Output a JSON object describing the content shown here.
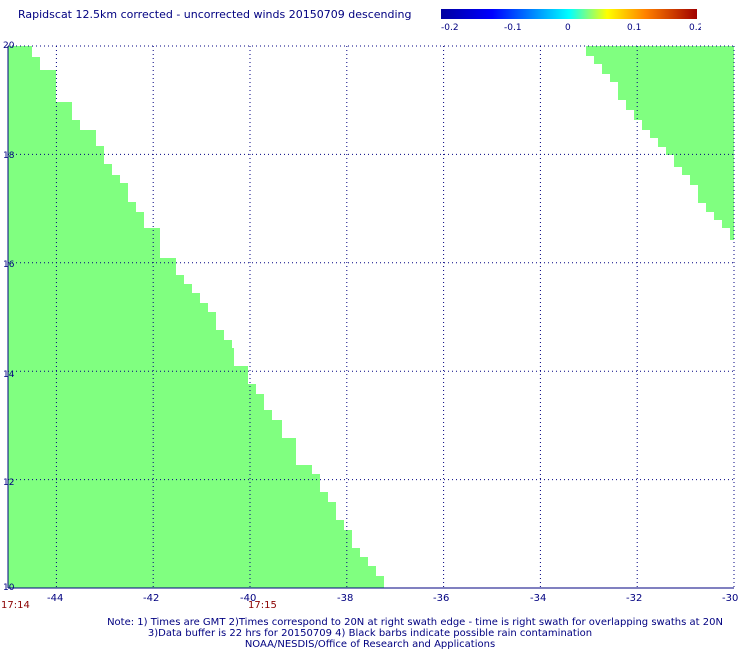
{
  "title": "Rapidscat 12.5km corrected - uncorrected winds 20150709 descending",
  "colorbar": {
    "ticks": [
      "-0.2",
      "-0.1",
      "0",
      "0.1",
      "0.2"
    ],
    "colors": [
      "#0000a0",
      "#0000ff",
      "#00ffff",
      "#ffff00",
      "#ff8000",
      "#a00000"
    ]
  },
  "map": {
    "lon_range": [
      -45,
      -30
    ],
    "lat_range": [
      10,
      20
    ],
    "lon_ticks": [
      "-44",
      "-42",
      "-40",
      "-38",
      "-36",
      "-34",
      "-32",
      "-30"
    ],
    "lat_ticks": [
      "20",
      "18",
      "16",
      "14",
      "12",
      "10"
    ],
    "swath_color": "#80ff80",
    "grid_color": "#000080"
  },
  "times": [
    "17:14",
    "17:15"
  ],
  "notes": [
    "Note: 1) Times are GMT 2)Times correspond to 20N at right swath edge - time is right swath for overlapping swaths at 20N",
    "3)Data buffer is 22 hrs for 20150709 4) Black barbs indicate possible rain contamination",
    "NOAA/NESDIS/Office of Research and Applications"
  ]
}
